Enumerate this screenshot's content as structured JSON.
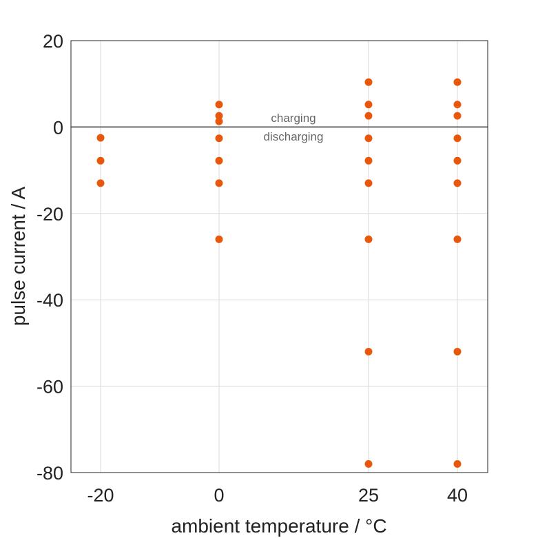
{
  "chart_data": {
    "type": "scatter",
    "xlabel": "ambient temperature / °C",
    "ylabel": "pulse current / A",
    "x_ticks": [
      -20,
      0,
      25,
      40
    ],
    "y_ticks": [
      20,
      0,
      -20,
      -40,
      -60,
      -80
    ],
    "ylim": [
      -80,
      20
    ],
    "grid": true,
    "marker_color": "#E8580C",
    "zero_line_color": "#6E6E6E",
    "annotations": {
      "charging": "charging",
      "discharging": "discharging"
    },
    "series": [
      {
        "points": [
          {
            "x": -20,
            "y": -2.5
          },
          {
            "x": -20,
            "y": -7.8
          },
          {
            "x": -20,
            "y": -13
          },
          {
            "x": 0,
            "y": 5.2
          },
          {
            "x": 0,
            "y": 2.6
          },
          {
            "x": 0,
            "y": 1.3
          },
          {
            "x": 0,
            "y": -2.6
          },
          {
            "x": 0,
            "y": -7.8
          },
          {
            "x": 0,
            "y": -13
          },
          {
            "x": 0,
            "y": -26
          },
          {
            "x": 25,
            "y": 10.4
          },
          {
            "x": 25,
            "y": 5.2
          },
          {
            "x": 25,
            "y": 2.6
          },
          {
            "x": 25,
            "y": -2.6
          },
          {
            "x": 25,
            "y": -7.8
          },
          {
            "x": 25,
            "y": -13
          },
          {
            "x": 25,
            "y": -26
          },
          {
            "x": 25,
            "y": -52
          },
          {
            "x": 25,
            "y": -78
          },
          {
            "x": 40,
            "y": 10.4
          },
          {
            "x": 40,
            "y": 5.2
          },
          {
            "x": 40,
            "y": 2.6
          },
          {
            "x": 40,
            "y": -2.6
          },
          {
            "x": 40,
            "y": -7.8
          },
          {
            "x": 40,
            "y": -13
          },
          {
            "x": 40,
            "y": -26
          },
          {
            "x": 40,
            "y": -52
          },
          {
            "x": 40,
            "y": -78
          }
        ]
      }
    ]
  }
}
